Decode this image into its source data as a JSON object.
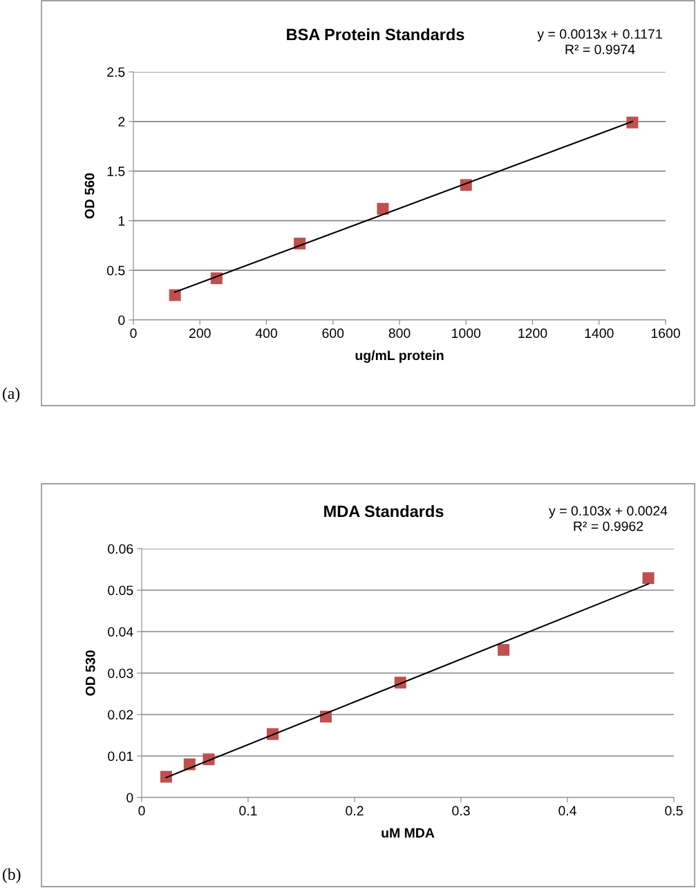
{
  "chart_data": [
    {
      "type": "scatter",
      "title": "BSA Protein Standards",
      "xlabel": "ug/mL protein",
      "ylabel": "OD 560",
      "annotations": [
        "y = 0.0013x + 0.1171\nR² = 0.9974",
        "(a)"
      ],
      "series": [
        {
          "color": "#c0504d",
          "marker": "square",
          "x": [
            125,
            250,
            500,
            750,
            1000,
            1500
          ],
          "values": [
            0.25,
            0.42,
            0.77,
            1.12,
            1.36,
            1.99
          ]
        },
        {
          "type": "line",
          "color": "#000000",
          "marker": "none",
          "x": [
            125,
            1500
          ],
          "values": [
            0.28,
            2.0
          ]
        }
      ],
      "xlim": [
        0,
        1600
      ],
      "xticks": [
        0,
        200,
        400,
        600,
        800,
        1000,
        1200,
        1400,
        1600
      ],
      "ylim": [
        0,
        2.5
      ],
      "yticks": [
        0,
        0.5,
        1,
        1.5,
        2,
        2.5
      ],
      "grid": "y",
      "legend": false
    },
    {
      "type": "scatter",
      "title": "MDA Standards",
      "xlabel": "uM MDA",
      "ylabel": "OD 530",
      "annotations": [
        "y = 0.103x + 0.0024\nR² = 0.9962",
        "(b)"
      ],
      "series": [
        {
          "color": "#c0504d",
          "marker": "square",
          "x": [
            0.023,
            0.045,
            0.063,
            0.123,
            0.173,
            0.243,
            0.34,
            0.476
          ],
          "values": [
            0.005,
            0.008,
            0.0092,
            0.0153,
            0.0195,
            0.0277,
            0.0356,
            0.0529
          ]
        },
        {
          "type": "line",
          "color": "#000000",
          "marker": "none",
          "x": [
            0.023,
            0.476
          ],
          "values": [
            0.0048,
            0.0515
          ]
        }
      ],
      "xlim": [
        0,
        0.5
      ],
      "xticks": [
        0,
        0.1,
        0.2,
        0.3,
        0.4,
        0.5
      ],
      "ylim": [
        0,
        0.06
      ],
      "yticks": [
        0,
        0.01,
        0.02,
        0.03,
        0.04,
        0.05,
        0.06
      ],
      "grid": "y",
      "legend": false
    }
  ]
}
